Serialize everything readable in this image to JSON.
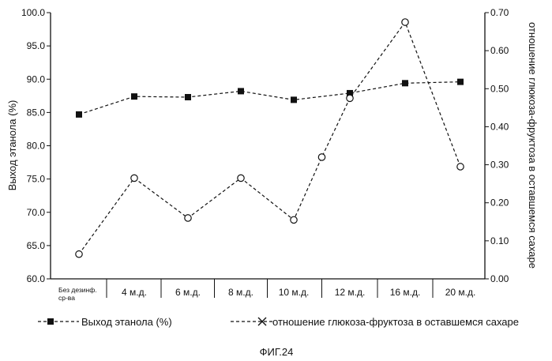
{
  "chart_data": {
    "type": "line",
    "categories": [
      "Без дезинф.\nср-ва",
      "4 м.д.",
      "6 м.д.",
      "8 м.д.",
      "10 м.д.",
      "12 м.д.",
      "16 м.д.",
      "20 м.д."
    ],
    "ylabel": "Выход этанола (%)",
    "y2label": "отношение глюкоза-фруктоза в оставшемся сахаре",
    "ylim": [
      60.0,
      100.0
    ],
    "y2lim": [
      0.0,
      0.7
    ],
    "yticks": [
      "60.0",
      "65.0",
      "70.0",
      "75.0",
      "80.0",
      "85.0",
      "90.0",
      "95.0",
      "100.0"
    ],
    "y2ticks": [
      "0.00",
      "0.10",
      "0.20",
      "0.30",
      "0.40",
      "0.50",
      "0.60",
      "0.70"
    ],
    "series": [
      {
        "name": "Выход этанола (%)",
        "axis": "left",
        "marker": "square",
        "x": [
          0,
          1,
          2,
          3,
          4,
          5,
          6,
          7
        ],
        "values": [
          84.7,
          87.4,
          87.3,
          88.2,
          86.9,
          87.9,
          89.4,
          89.6
        ]
      },
      {
        "name": "отношение глюкоза-фруктоза в оставшемся сахаре",
        "axis": "right",
        "marker": "circle",
        "x": [
          0,
          1,
          2,
          3,
          4,
          4.5,
          5,
          6,
          7
        ],
        "values": [
          0.065,
          0.265,
          0.16,
          0.265,
          0.155,
          0.32,
          0.475,
          0.675,
          0.295
        ]
      }
    ],
    "legend": "bottom",
    "grid": false
  },
  "caption": "ФИГ.24"
}
